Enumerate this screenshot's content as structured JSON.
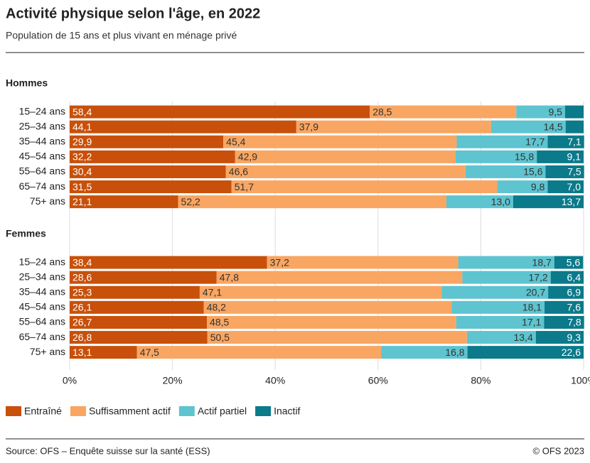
{
  "title": "Activité physique selon l'âge, en 2022",
  "subtitle": "Population de 15 ans et plus vivant en ménage privé",
  "source": "Source: OFS – Enquête suisse sur la santé (ESS)",
  "copyright": "© OFS 2023",
  "chart_data": [
    {
      "type": "stacked-bar-horizontal",
      "title": "Hommes",
      "categories": [
        "15–24 ans",
        "25–34 ans",
        "35–44 ans",
        "45–54 ans",
        "55–64 ans",
        "65–74 ans",
        "75+ ans"
      ],
      "xlim": [
        0,
        100
      ],
      "series": [
        {
          "name": "Entraîné",
          "color": "#c8500a",
          "values": [
            58.4,
            44.1,
            29.9,
            32.2,
            30.4,
            31.5,
            21.1
          ],
          "value_labels": [
            "58,4",
            "44,1",
            "29,9",
            "32,2",
            "30,4",
            "31,5",
            "21,1"
          ]
        },
        {
          "name": "Suffisamment actif",
          "color": "#f9a662",
          "values": [
            28.5,
            37.9,
            45.4,
            42.9,
            46.6,
            51.7,
            52.2
          ],
          "value_labels": [
            "28,5",
            "37,9",
            "45,4",
            "42,9",
            "46,6",
            "51,7",
            "52,2"
          ]
        },
        {
          "name": "Actif partiel",
          "color": "#5ec4d0",
          "values": [
            9.5,
            14.5,
            17.7,
            15.8,
            15.6,
            9.8,
            13.0
          ],
          "value_labels": [
            "9,5",
            "14,5",
            "17,7",
            "15,8",
            "15,6",
            "9,8",
            "13,0"
          ]
        },
        {
          "name": "Inactif",
          "color": "#0b7a8a",
          "values": [
            3.6,
            3.5,
            7.1,
            9.1,
            7.5,
            7.0,
            13.7
          ],
          "value_labels": [
            null,
            null,
            "7,1",
            "9,1",
            "7,5",
            "7,0",
            "13,7"
          ]
        }
      ]
    },
    {
      "type": "stacked-bar-horizontal",
      "title": "Femmes",
      "categories": [
        "15–24 ans",
        "25–34 ans",
        "35–44 ans",
        "45–54 ans",
        "55–64 ans",
        "65–74 ans",
        "75+ ans"
      ],
      "xlim": [
        0,
        100
      ],
      "xticks": [
        {
          "value": 0,
          "label": "0%"
        },
        {
          "value": 20,
          "label": "20%"
        },
        {
          "value": 40,
          "label": "40%"
        },
        {
          "value": 60,
          "label": "60%"
        },
        {
          "value": 80,
          "label": "80%"
        },
        {
          "value": 100,
          "label": "100%"
        }
      ],
      "grid": true,
      "series": [
        {
          "name": "Entraîné",
          "color": "#c8500a",
          "values": [
            38.4,
            28.6,
            25.3,
            26.1,
            26.7,
            26.8,
            13.1
          ],
          "value_labels": [
            "38,4",
            "28,6",
            "25,3",
            "26,1",
            "26,7",
            "26,8",
            "13,1"
          ]
        },
        {
          "name": "Suffisamment actif",
          "color": "#f9a662",
          "values": [
            37.2,
            47.8,
            47.1,
            48.2,
            48.5,
            50.5,
            47.5
          ],
          "value_labels": [
            "37,2",
            "47,8",
            "47,1",
            "48,2",
            "48,5",
            "50,5",
            "47,5"
          ]
        },
        {
          "name": "Actif partiel",
          "color": "#5ec4d0",
          "values": [
            18.7,
            17.2,
            20.7,
            18.1,
            17.1,
            13.4,
            16.8
          ],
          "value_labels": [
            "18,7",
            "17,2",
            "20,7",
            "18,1",
            "17,1",
            "13,4",
            "16,8"
          ]
        },
        {
          "name": "Inactif",
          "color": "#0b7a8a",
          "values": [
            5.6,
            6.4,
            6.9,
            7.6,
            7.8,
            9.3,
            22.6
          ],
          "value_labels": [
            "5,6",
            "6,4",
            "6,9",
            "7,6",
            "7,8",
            "9,3",
            "22,6"
          ]
        }
      ]
    }
  ]
}
